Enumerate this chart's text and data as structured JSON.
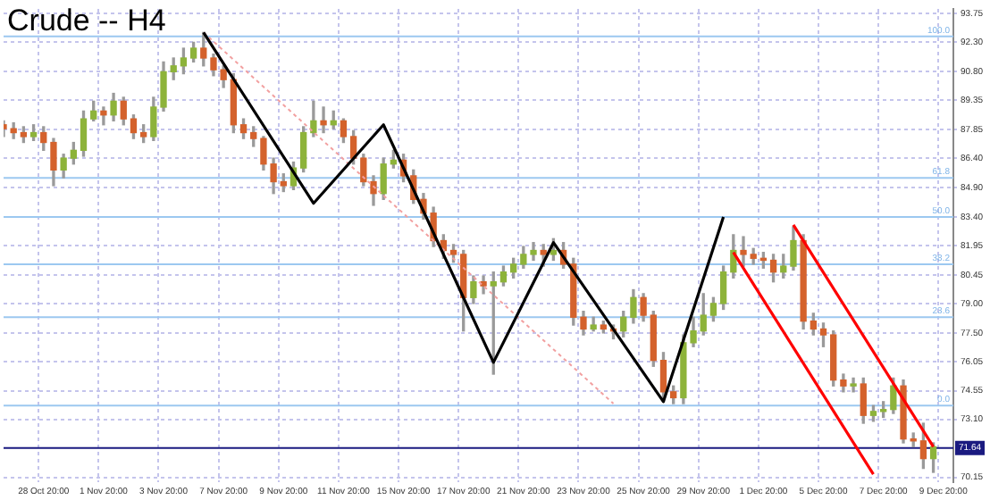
{
  "chart_data": {
    "type": "candlestick",
    "title": "Crude -- H4",
    "categories": [
      null,
      null,
      null,
      null,
      "28 Oct 20:00",
      null,
      null,
      null,
      null,
      null,
      "1 Nov 20:00",
      null,
      null,
      null,
      null,
      null,
      "3 Nov 20:00",
      null,
      null,
      null,
      null,
      null,
      "7 Nov 20:00",
      null,
      null,
      null,
      null,
      null,
      "9 Nov 20:00",
      null,
      null,
      null,
      null,
      null,
      "11 Nov 20:00",
      null,
      null,
      null,
      null,
      null,
      "15 Nov 20:00",
      null,
      null,
      null,
      null,
      null,
      "17 Nov 20:00",
      null,
      null,
      null,
      null,
      null,
      "21 Nov 20:00",
      null,
      null,
      null,
      null,
      null,
      "23 Nov 20:00",
      null,
      null,
      null,
      null,
      null,
      "25 Nov 20:00",
      null,
      null,
      null,
      null,
      null,
      "29 Nov 20:00",
      null,
      null,
      null,
      null,
      null,
      "1 Dec 20:00",
      null,
      null,
      null,
      null,
      null,
      "5 Dec 20:00",
      null,
      null,
      null,
      null,
      null,
      "7 Dec 20:00",
      null,
      null,
      null,
      null,
      null,
      "9 Dec 20:00",
      null
    ],
    "ohlc": [
      [
        88.1,
        88.3,
        87.5,
        87.9
      ],
      [
        87.9,
        88.2,
        87.4,
        87.7
      ],
      [
        87.7,
        88.0,
        87.2,
        87.5
      ],
      [
        87.5,
        88.1,
        87.3,
        87.7
      ],
      [
        87.7,
        88.0,
        86.8,
        87.2
      ],
      [
        87.2,
        87.4,
        85.0,
        85.8
      ],
      [
        85.8,
        86.6,
        85.4,
        86.4
      ],
      [
        86.4,
        87.2,
        86.1,
        86.8
      ],
      [
        86.8,
        88.8,
        86.5,
        88.4
      ],
      [
        88.4,
        89.3,
        88.3,
        88.8
      ],
      [
        88.8,
        89.0,
        88.1,
        88.6
      ],
      [
        88.6,
        89.7,
        88.3,
        89.3
      ],
      [
        89.3,
        89.5,
        88.1,
        88.4
      ],
      [
        88.4,
        88.6,
        87.4,
        87.7
      ],
      [
        87.7,
        88.1,
        87.2,
        87.5
      ],
      [
        87.5,
        89.5,
        87.3,
        89.0
      ],
      [
        89.0,
        91.3,
        88.8,
        90.8
      ],
      [
        90.8,
        91.5,
        90.4,
        91.1
      ],
      [
        91.1,
        92.0,
        90.7,
        91.5
      ],
      [
        91.5,
        92.3,
        91.3,
        92.0
      ],
      [
        92.0,
        92.8,
        91.1,
        91.5
      ],
      [
        91.5,
        91.7,
        90.6,
        90.9
      ],
      [
        90.9,
        91.1,
        90.0,
        90.4
      ],
      [
        90.4,
        90.7,
        87.7,
        88.1
      ],
      [
        88.1,
        88.4,
        87.4,
        87.7
      ],
      [
        87.7,
        88.0,
        87.0,
        87.4
      ],
      [
        87.4,
        87.5,
        85.8,
        86.1
      ],
      [
        86.1,
        86.4,
        84.6,
        85.2
      ],
      [
        85.2,
        85.6,
        84.7,
        85.0
      ],
      [
        85.0,
        86.2,
        84.8,
        85.9
      ],
      [
        85.9,
        88.0,
        85.7,
        87.7
      ],
      [
        87.7,
        89.3,
        87.5,
        88.3
      ],
      [
        88.3,
        89.0,
        87.7,
        88.1
      ],
      [
        88.1,
        88.8,
        87.9,
        88.3
      ],
      [
        88.3,
        88.4,
        87.2,
        87.5
      ],
      [
        87.5,
        87.8,
        86.1,
        86.4
      ],
      [
        86.4,
        86.6,
        85.0,
        85.2
      ],
      [
        85.2,
        85.5,
        84.0,
        84.6
      ],
      [
        84.6,
        86.4,
        84.3,
        86.1
      ],
      [
        86.1,
        86.8,
        85.9,
        86.3
      ],
      [
        86.3,
        86.6,
        85.2,
        85.5
      ],
      [
        85.5,
        85.8,
        84.1,
        84.3
      ],
      [
        84.3,
        84.6,
        83.3,
        83.6
      ],
      [
        83.6,
        83.9,
        81.9,
        82.2
      ],
      [
        82.2,
        82.5,
        81.3,
        81.7
      ],
      [
        81.7,
        82.0,
        81.1,
        81.5
      ],
      [
        81.5,
        81.7,
        77.6,
        79.3
      ],
      [
        79.3,
        80.4,
        79.0,
        80.1
      ],
      [
        80.1,
        80.4,
        79.5,
        79.9
      ],
      [
        79.9,
        80.6,
        75.4,
        80.1
      ],
      [
        80.1,
        80.9,
        79.9,
        80.6
      ],
      [
        80.6,
        81.3,
        80.3,
        81.0
      ],
      [
        81.0,
        81.9,
        80.8,
        81.5
      ],
      [
        81.5,
        82.1,
        81.2,
        81.7
      ],
      [
        81.7,
        82.0,
        80.9,
        81.5
      ],
      [
        81.5,
        82.3,
        81.2,
        81.7
      ],
      [
        81.7,
        82.1,
        80.8,
        81.0
      ],
      [
        81.0,
        81.3,
        77.9,
        78.3
      ],
      [
        78.3,
        78.6,
        77.4,
        77.7
      ],
      [
        77.7,
        78.3,
        77.6,
        77.9
      ],
      [
        77.9,
        78.1,
        77.5,
        77.7
      ],
      [
        77.7,
        77.9,
        77.2,
        77.6
      ],
      [
        77.6,
        78.6,
        77.3,
        78.3
      ],
      [
        78.3,
        79.7,
        78.0,
        79.3
      ],
      [
        79.3,
        79.5,
        78.1,
        78.4
      ],
      [
        78.4,
        78.6,
        75.8,
        76.1
      ],
      [
        76.1,
        76.5,
        74.0,
        74.5
      ],
      [
        74.5,
        74.8,
        73.9,
        74.2
      ],
      [
        74.2,
        77.4,
        73.9,
        77.0
      ],
      [
        77.0,
        78.3,
        76.8,
        77.6
      ],
      [
        77.6,
        79.5,
        77.4,
        78.4
      ],
      [
        78.4,
        79.3,
        78.1,
        79.0
      ],
      [
        79.0,
        80.9,
        78.7,
        80.6
      ],
      [
        80.6,
        82.5,
        80.3,
        81.7
      ],
      [
        81.7,
        82.4,
        80.9,
        81.5
      ],
      [
        81.5,
        81.8,
        81.0,
        81.3
      ],
      [
        81.3,
        81.6,
        80.8,
        81.2
      ],
      [
        81.2,
        81.5,
        80.1,
        80.6
      ],
      [
        80.6,
        81.5,
        80.3,
        80.9
      ],
      [
        80.9,
        82.9,
        80.7,
        82.2
      ],
      [
        82.2,
        82.5,
        77.7,
        78.1
      ],
      [
        78.1,
        78.5,
        77.4,
        77.7
      ],
      [
        77.7,
        78.0,
        76.8,
        77.4
      ],
      [
        77.4,
        77.6,
        74.8,
        75.1
      ],
      [
        75.1,
        75.4,
        74.5,
        74.8
      ],
      [
        74.8,
        75.2,
        74.5,
        74.9
      ],
      [
        74.9,
        75.2,
        72.9,
        73.3
      ],
      [
        73.3,
        73.8,
        73.0,
        73.5
      ],
      [
        73.5,
        74.0,
        73.2,
        73.6
      ],
      [
        73.6,
        75.2,
        73.4,
        74.8
      ],
      [
        74.8,
        75.1,
        71.9,
        72.1
      ],
      [
        72.1,
        72.4,
        71.7,
        72.0
      ],
      [
        72.0,
        72.9,
        70.6,
        71.1
      ],
      [
        71.1,
        71.9,
        70.4,
        71.7
      ],
      null,
      null
    ],
    "colors": [
      "#d4622c",
      "#d4622c",
      "#d4622c",
      "#8db33a",
      "#d4622c",
      "#d4622c",
      "#8db33a",
      "#8db33a",
      "#8db33a",
      "#8db33a",
      "#d4622c",
      "#8db33a",
      "#d4622c",
      "#d4622c",
      "#d4622c",
      "#8db33a",
      "#8db33a",
      "#8db33a",
      "#8db33a",
      "#8db33a",
      "#d4622c",
      "#d4622c",
      "#d4622c",
      "#d4622c",
      "#d4622c",
      "#d4622c",
      "#d4622c",
      "#d4622c",
      "#d4622c",
      "#8db33a",
      "#8db33a",
      "#8db33a",
      "#d4622c",
      "#8db33a",
      "#d4622c",
      "#d4622c",
      "#d4622c",
      "#d4622c",
      "#8db33a",
      "#8db33a",
      "#d4622c",
      "#d4622c",
      "#d4622c",
      "#d4622c",
      "#d4622c",
      "#d4622c",
      "#d4622c",
      "#8db33a",
      "#d4622c",
      "#8db33a",
      "#8db33a",
      "#8db33a",
      "#8db33a",
      "#8db33a",
      "#d4622c",
      "#8db33a",
      "#d4622c",
      "#d4622c",
      "#d4622c",
      "#8db33a",
      "#d4622c",
      "#d4622c",
      "#8db33a",
      "#8db33a",
      "#d4622c",
      "#d4622c",
      "#d4622c",
      "#d4622c",
      "#8db33a",
      "#8db33a",
      "#8db33a",
      "#8db33a",
      "#8db33a",
      "#8db33a",
      "#d4622c",
      "#d4622c",
      "#d4622c",
      "#d4622c",
      "#8db33a",
      "#8db33a",
      "#d4622c",
      "#d4622c",
      "#d4622c",
      "#d4622c",
      "#d4622c",
      "#8db33a",
      "#d4622c",
      "#8db33a",
      "#8db33a",
      "#8db33a",
      "#d4622c",
      "#d4622c",
      "#d4622c",
      "#8db33a",
      null,
      null
    ],
    "series": [
      {
        "type": "line",
        "color": "#000000",
        "line_style": "solid",
        "values": [
          null,
          null,
          null,
          null,
          null,
          null,
          null,
          null,
          null,
          null,
          null,
          null,
          null,
          null,
          null,
          null,
          null,
          null,
          null,
          null,
          92.8,
          null,
          null,
          null,
          null,
          null,
          null,
          null,
          null,
          null,
          null,
          84.1,
          null,
          null,
          null,
          null,
          null,
          null,
          88.1,
          null,
          null,
          null,
          null,
          null,
          null,
          null,
          null,
          null,
          null,
          76.0,
          null,
          null,
          null,
          null,
          null,
          82.1,
          null,
          null,
          null,
          null,
          null,
          null,
          null,
          null,
          null,
          null,
          74.0,
          null,
          null,
          null,
          null,
          null,
          83.4,
          null,
          null,
          null,
          null,
          null,
          null,
          null,
          null,
          null,
          null,
          null,
          null,
          null,
          null,
          null,
          null,
          null,
          null,
          null,
          null,
          null,
          null,
          null
        ]
      },
      {
        "type": "line",
        "color": "#ff0000",
        "line_style": "solid",
        "values": [
          null,
          null,
          null,
          null,
          null,
          null,
          null,
          null,
          null,
          null,
          null,
          null,
          null,
          null,
          null,
          null,
          null,
          null,
          null,
          null,
          null,
          null,
          null,
          null,
          null,
          null,
          null,
          null,
          null,
          null,
          null,
          null,
          null,
          null,
          null,
          null,
          null,
          null,
          null,
          null,
          null,
          null,
          null,
          null,
          null,
          null,
          null,
          null,
          null,
          null,
          null,
          null,
          null,
          null,
          null,
          null,
          null,
          null,
          null,
          null,
          null,
          null,
          null,
          null,
          null,
          null,
          null,
          null,
          null,
          null,
          null,
          null,
          null,
          81.6,
          null,
          null,
          null,
          null,
          null,
          null,
          null,
          null,
          null,
          null,
          null,
          null,
          null,
          70.3,
          null,
          null,
          null,
          null,
          null,
          null,
          null,
          null
        ]
      },
      {
        "type": "line",
        "color": "#ff0000",
        "line_style": "solid",
        "values": [
          null,
          null,
          null,
          null,
          null,
          null,
          null,
          null,
          null,
          null,
          null,
          null,
          null,
          null,
          null,
          null,
          null,
          null,
          null,
          null,
          null,
          null,
          null,
          null,
          null,
          null,
          null,
          null,
          null,
          null,
          null,
          null,
          null,
          null,
          null,
          null,
          null,
          null,
          null,
          null,
          null,
          null,
          null,
          null,
          null,
          null,
          null,
          null,
          null,
          null,
          null,
          null,
          null,
          null,
          null,
          null,
          null,
          null,
          null,
          null,
          null,
          null,
          null,
          null,
          null,
          null,
          null,
          null,
          null,
          null,
          null,
          null,
          null,
          null,
          null,
          null,
          null,
          null,
          null,
          83.0,
          null,
          null,
          null,
          null,
          null,
          null,
          null,
          null,
          null,
          null,
          null,
          null,
          null,
          71.7,
          null,
          null
        ]
      },
      {
        "type": "line",
        "color": "#f2a0a0",
        "line_style": "dotted",
        "values": [
          null,
          null,
          null,
          null,
          null,
          null,
          null,
          null,
          null,
          null,
          null,
          null,
          null,
          null,
          null,
          null,
          null,
          null,
          null,
          null,
          92.8,
          null,
          null,
          null,
          null,
          null,
          null,
          null,
          null,
          null,
          null,
          null,
          null,
          null,
          null,
          null,
          null,
          null,
          null,
          null,
          null,
          null,
          null,
          null,
          null,
          null,
          null,
          null,
          null,
          null,
          null,
          null,
          null,
          null,
          null,
          null,
          null,
          null,
          null,
          null,
          null,
          73.9,
          null,
          null,
          null,
          null,
          null,
          null,
          null,
          null,
          null,
          null,
          null,
          null,
          null,
          null,
          null,
          null,
          null,
          null,
          null,
          null,
          null,
          null,
          null,
          null,
          null,
          null,
          null,
          null,
          null,
          null,
          null,
          null,
          null,
          null
        ]
      }
    ],
    "ylim": [
      69.9,
      94.0
    ],
    "yticks": [
      {
        "value": 70.15,
        "label": "70.15"
      },
      {
        "value": 73.1,
        "label": "73.10"
      },
      {
        "value": 74.55,
        "label": "74.55"
      },
      {
        "value": 76.05,
        "label": "76.05"
      },
      {
        "value": 77.5,
        "label": "77.50"
      },
      {
        "value": 79.0,
        "label": "79.00"
      },
      {
        "value": 80.45,
        "label": "80.45"
      },
      {
        "value": 81.95,
        "label": "81.95"
      },
      {
        "value": 83.4,
        "label": "83.40"
      },
      {
        "value": 84.9,
        "label": "84.90"
      },
      {
        "value": 86.4,
        "label": "86.40"
      },
      {
        "value": 87.85,
        "label": "87.85"
      },
      {
        "value": 89.35,
        "label": "89.35"
      },
      {
        "value": 90.8,
        "label": "90.80"
      },
      {
        "value": 92.3,
        "label": "92.30"
      },
      {
        "value": 93.75,
        "label": "93.75"
      }
    ],
    "ref_lines": [
      {
        "axis": "y",
        "value": 92.6,
        "color": "#9cc8f0"
      },
      {
        "axis": "y",
        "value": 85.4,
        "color": "#9cc8f0"
      },
      {
        "axis": "y",
        "value": 83.4,
        "color": "#9cc8f0"
      },
      {
        "axis": "y",
        "value": 81.0,
        "color": "#9cc8f0"
      },
      {
        "axis": "y",
        "value": 78.3,
        "color": "#9cc8f0"
      },
      {
        "axis": "y",
        "value": 73.8,
        "color": "#9cc8f0"
      },
      {
        "axis": "y",
        "value": 71.64,
        "label": "71.64",
        "color": "#1a1a80"
      }
    ],
    "annotations": [
      {
        "text": "100.0",
        "y": 92.6
      },
      {
        "text": "61.8",
        "y": 85.4
      },
      {
        "text": "50.0",
        "y": 83.4
      },
      {
        "text": "38.2",
        "y": 81.0
      },
      {
        "text": "23.6",
        "y": 78.3
      },
      {
        "text": "0.0",
        "y": 73.8
      }
    ],
    "grid": true
  }
}
